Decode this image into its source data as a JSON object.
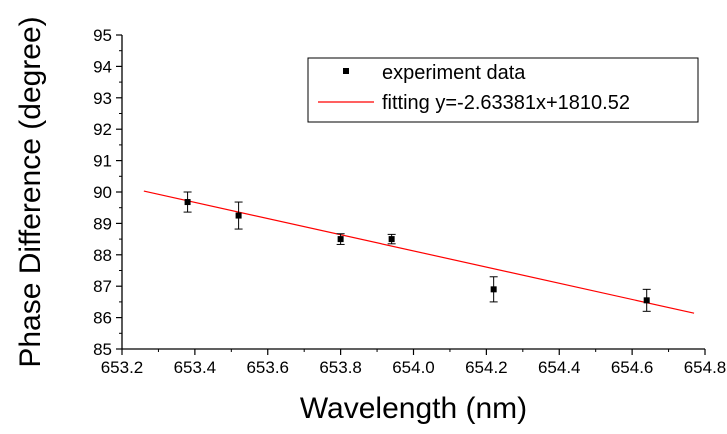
{
  "chart_data": {
    "type": "scatter",
    "title": "",
    "xlabel": "Wavelength (nm)",
    "ylabel": "Phase Difference (degree)",
    "xlim": [
      653.2,
      654.8
    ],
    "ylim": [
      85,
      95
    ],
    "xticks": [
      "653.2",
      "653.4",
      "653.6",
      "653.8",
      "654.0",
      "654.2",
      "654.4",
      "654.6",
      "654.8"
    ],
    "yticks": [
      "85",
      "86",
      "87",
      "88",
      "89",
      "90",
      "91",
      "92",
      "93",
      "94",
      "95"
    ],
    "grid": false,
    "legend": {
      "position": "top-right",
      "entries": [
        "experiment data",
        "fitting y=-2.63381x+1810.52"
      ]
    },
    "series": [
      {
        "name": "experiment data",
        "marker": "square",
        "color": "#000000",
        "x": [
          653.38,
          653.52,
          653.8,
          653.94,
          654.22,
          654.64
        ],
        "y": [
          89.68,
          89.25,
          88.5,
          88.5,
          86.9,
          86.55
        ],
        "error": [
          0.32,
          0.43,
          0.17,
          0.15,
          0.4,
          0.35
        ]
      },
      {
        "name": "fitting y=-2.63381x+1810.52",
        "type": "line",
        "color": "#ff0000",
        "x": [
          653.26,
          654.77
        ],
        "y": [
          90.03,
          86.14
        ]
      }
    ]
  }
}
